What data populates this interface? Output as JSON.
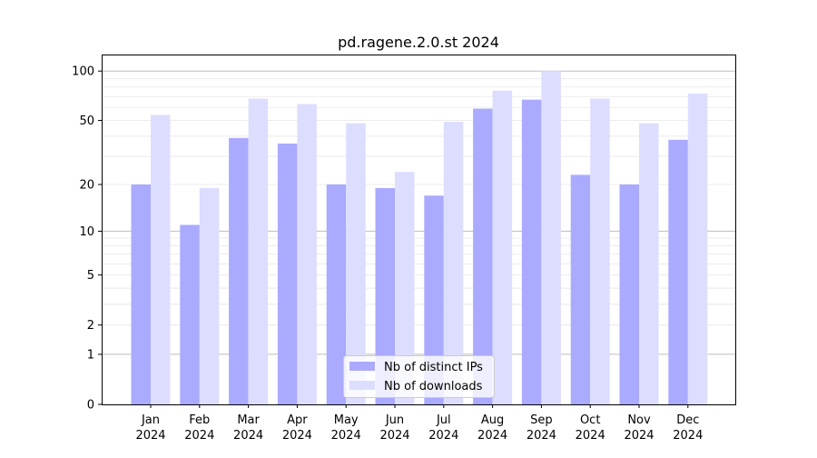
{
  "chart_data": {
    "type": "bar",
    "title": "pd.ragene.2.0.st 2024",
    "xlabel": "",
    "ylabel": "",
    "yscale": "log10(1+y)",
    "ylim": [
      0,
      126
    ],
    "yticks": [
      0,
      1,
      2,
      5,
      10,
      20,
      50,
      100
    ],
    "categories": [
      "Jan\n2024",
      "Feb\n2024",
      "Mar\n2024",
      "Apr\n2024",
      "May\n2024",
      "Jun\n2024",
      "Jul\n2024",
      "Aug\n2024",
      "Sep\n2024",
      "Oct\n2024",
      "Nov\n2024",
      "Dec\n2024"
    ],
    "series": [
      {
        "name": "Nb of distinct IPs",
        "color": "#aaaaff",
        "values": [
          20,
          11,
          39,
          36,
          20,
          19,
          17,
          59,
          67,
          23,
          20,
          38
        ]
      },
      {
        "name": "Nb of downloads",
        "color": "#ddddff",
        "values": [
          54,
          19,
          68,
          63,
          48,
          24,
          49,
          76,
          100,
          68,
          48,
          73
        ]
      }
    ],
    "grid": true,
    "legend_position": "bottom-center"
  }
}
